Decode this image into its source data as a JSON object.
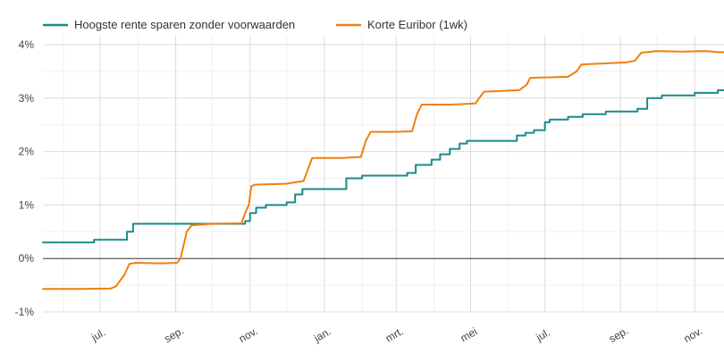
{
  "chart_data": {
    "type": "line",
    "title": "",
    "xlabel": "",
    "ylabel": "",
    "yunit": "%",
    "ylim": [
      -1,
      4
    ],
    "yticks": [
      -1,
      0,
      1,
      2,
      3,
      4
    ],
    "ytick_labels": [
      "-1%",
      "0%",
      "1%",
      "2%",
      "3%",
      "4%"
    ],
    "xlim": [
      "2022-05-15",
      "2023-11-25"
    ],
    "xticks": [
      {
        "date": "2022-07-01",
        "label": "jul."
      },
      {
        "date": "2022-09-01",
        "label": "sep."
      },
      {
        "date": "2022-11-01",
        "label": "nov."
      },
      {
        "date": "2023-01-01",
        "label": "jan."
      },
      {
        "date": "2023-03-01",
        "label": "mrt."
      },
      {
        "date": "2023-05-01",
        "label": "mei"
      },
      {
        "date": "2023-07-01",
        "label": "jul."
      },
      {
        "date": "2023-09-01",
        "label": "sep."
      },
      {
        "date": "2023-11-01",
        "label": "nov."
      }
    ],
    "grid": true,
    "legend": "top-left",
    "series": [
      {
        "name": "Hoogste rente sparen zonder voorwaarden",
        "color": "#1b8a8a",
        "step": true,
        "points": [
          [
            "2022-05-15",
            0.3
          ],
          [
            "2022-06-26",
            0.35
          ],
          [
            "2022-07-23",
            0.5
          ],
          [
            "2022-07-28",
            0.65
          ],
          [
            "2022-10-28",
            0.7
          ],
          [
            "2022-11-01",
            0.85
          ],
          [
            "2022-11-06",
            0.95
          ],
          [
            "2022-11-14",
            1.0
          ],
          [
            "2022-12-01",
            1.05
          ],
          [
            "2022-12-08",
            1.2
          ],
          [
            "2022-12-14",
            1.3
          ],
          [
            "2023-01-19",
            1.5
          ],
          [
            "2023-02-01",
            1.55
          ],
          [
            "2023-03-10",
            1.6
          ],
          [
            "2023-03-17",
            1.75
          ],
          [
            "2023-03-30",
            1.85
          ],
          [
            "2023-04-06",
            1.95
          ],
          [
            "2023-04-14",
            2.05
          ],
          [
            "2023-04-22",
            2.15
          ],
          [
            "2023-04-28",
            2.2
          ],
          [
            "2023-06-08",
            2.3
          ],
          [
            "2023-06-15",
            2.35
          ],
          [
            "2023-06-22",
            2.4
          ],
          [
            "2023-07-01",
            2.55
          ],
          [
            "2023-07-05",
            2.6
          ],
          [
            "2023-07-20",
            2.65
          ],
          [
            "2023-08-01",
            2.7
          ],
          [
            "2023-08-20",
            2.75
          ],
          [
            "2023-09-15",
            2.8
          ],
          [
            "2023-09-23",
            3.0
          ],
          [
            "2023-10-05",
            3.05
          ],
          [
            "2023-11-01",
            3.1
          ],
          [
            "2023-11-20",
            3.15
          ],
          [
            "2023-11-25",
            3.15
          ]
        ]
      },
      {
        "name": "Korte Euribor (1wk)",
        "color": "#f07f0e",
        "step": false,
        "points": [
          [
            "2022-05-15",
            -0.57
          ],
          [
            "2022-06-15",
            -0.57
          ],
          [
            "2022-07-10",
            -0.56
          ],
          [
            "2022-07-14",
            -0.52
          ],
          [
            "2022-07-21",
            -0.3
          ],
          [
            "2022-07-25",
            -0.1
          ],
          [
            "2022-07-30",
            -0.08
          ],
          [
            "2022-08-20",
            -0.09
          ],
          [
            "2022-09-02",
            -0.08
          ],
          [
            "2022-09-05",
            0.0
          ],
          [
            "2022-09-08",
            0.3
          ],
          [
            "2022-09-10",
            0.5
          ],
          [
            "2022-09-14",
            0.62
          ],
          [
            "2022-10-01",
            0.65
          ],
          [
            "2022-10-25",
            0.66
          ],
          [
            "2022-10-28",
            0.85
          ],
          [
            "2022-10-31",
            1.0
          ],
          [
            "2022-11-02",
            1.35
          ],
          [
            "2022-11-05",
            1.38
          ],
          [
            "2022-12-01",
            1.4
          ],
          [
            "2022-12-15",
            1.45
          ],
          [
            "2022-12-19",
            1.7
          ],
          [
            "2022-12-22",
            1.88
          ],
          [
            "2023-01-15",
            1.88
          ],
          [
            "2023-01-31",
            1.9
          ],
          [
            "2023-02-04",
            2.2
          ],
          [
            "2023-02-08",
            2.37
          ],
          [
            "2023-03-01",
            2.37
          ],
          [
            "2023-03-14",
            2.38
          ],
          [
            "2023-03-18",
            2.7
          ],
          [
            "2023-03-22",
            2.88
          ],
          [
            "2023-04-15",
            2.88
          ],
          [
            "2023-05-05",
            2.9
          ],
          [
            "2023-05-08",
            3.0
          ],
          [
            "2023-05-12",
            3.12
          ],
          [
            "2023-06-10",
            3.15
          ],
          [
            "2023-06-16",
            3.25
          ],
          [
            "2023-06-19",
            3.38
          ],
          [
            "2023-07-20",
            3.4
          ],
          [
            "2023-07-27",
            3.5
          ],
          [
            "2023-07-31",
            3.63
          ],
          [
            "2023-08-20",
            3.65
          ],
          [
            "2023-09-06",
            3.67
          ],
          [
            "2023-09-13",
            3.7
          ],
          [
            "2023-09-18",
            3.85
          ],
          [
            "2023-10-01",
            3.88
          ],
          [
            "2023-10-20",
            3.87
          ],
          [
            "2023-11-10",
            3.88
          ],
          [
            "2023-11-20",
            3.86
          ],
          [
            "2023-11-25",
            3.86
          ]
        ]
      }
    ]
  }
}
